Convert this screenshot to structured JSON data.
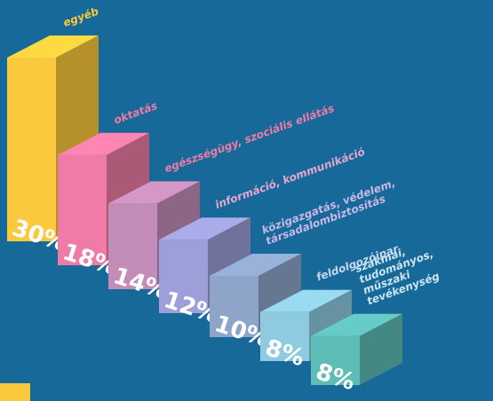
{
  "chart_data": {
    "type": "bar3d",
    "categories": [
      "egyéb",
      "oktatás",
      "egészségügy, szociális ellátás",
      "információ, kommunikáció",
      "közigazgatás, védelem,\ntársadalombiztosítás",
      "feldolgozóipar",
      "szakmai,\ntudományos,\nműszaki\ntevékenység"
    ],
    "values": [
      30,
      18,
      14,
      12,
      10,
      8,
      8
    ],
    "value_labels": [
      "30%",
      "18%",
      "14%",
      "12%",
      "10%",
      "8%",
      "8%"
    ],
    "colors": [
      "#fbc93d",
      "#ef7ba6",
      "#c48cb9",
      "#9c9fd8",
      "#8ea5c9",
      "#8fcbe0",
      "#5fbdb8"
    ]
  }
}
